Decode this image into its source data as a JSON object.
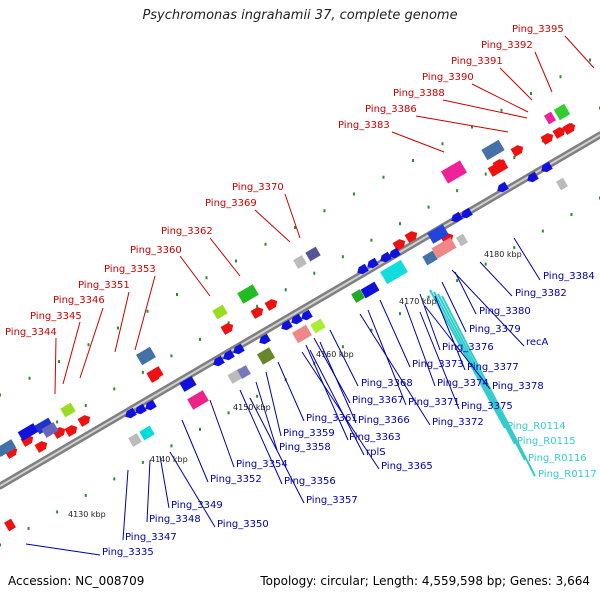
{
  "title": "Psychromonas ingrahamii 37, complete genome",
  "accession_text": "Accession: NC_008709",
  "summary_text": "Topology: circular; Length: 4,559,598 bp; Genes: 3,664",
  "scale_ticks": [
    {
      "label": "4130 kbp"
    },
    {
      "label": "4140 kbp"
    },
    {
      "label": "4150 kbp"
    },
    {
      "label": "4160 kbp"
    },
    {
      "label": "4170 kbp"
    },
    {
      "label": "4180 kbp"
    }
  ],
  "upper_strand_labels": [
    "Ping_3395",
    "Ping_3392",
    "Ping_3391",
    "Ping_3390",
    "Ping_3388",
    "Ping_3386",
    "Ping_3383",
    "Ping_3370",
    "Ping_3369",
    "Ping_3362",
    "Ping_3360",
    "Ping_3353",
    "Ping_3351",
    "Ping_3346",
    "Ping_3345",
    "Ping_3344"
  ],
  "lower_strand_labels": [
    "Ping_3384",
    "Ping_3382",
    "Ping_3380",
    "Ping_3379",
    "recA",
    "Ping_3376",
    "Ping_3377",
    "Ping_3373",
    "Ping_3374",
    "Ping_3378",
    "Ping_3371",
    "Ping_3375",
    "Ping_3372",
    "Ping_3368",
    "Ping_3367",
    "Ping_3366",
    "Ping_3363",
    "rplS",
    "Ping_3365",
    "Ping_3361",
    "Ping_3359",
    "Ping_3358",
    "Ping_3354",
    "Ping_3352",
    "Ping_3356",
    "Ping_3357",
    "Ping_3349",
    "Ping_3348",
    "Ping_3350",
    "Ping_3347",
    "Ping_3335"
  ],
  "rna_labels": [
    "Ping_R0114",
    "Ping_R0115",
    "Ping_R0116",
    "Ping_R0117"
  ],
  "colors": {
    "upper_label": "#cc0000",
    "lower_label": "#0000aa",
    "rna_label": "#33cccc",
    "backbone": "#8a8a8a",
    "tick_dots": "#2e8b2e"
  }
}
